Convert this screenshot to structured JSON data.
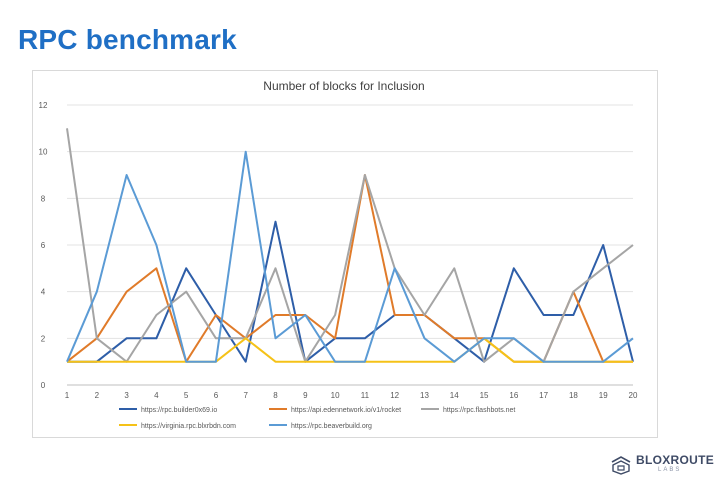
{
  "slide": {
    "title": "RPC benchmark"
  },
  "brand": {
    "name": "BLOXROUTE",
    "sub": "LABS"
  },
  "chart_data": {
    "type": "line",
    "title": "Number of blocks for Inclusion",
    "xlabel": "",
    "ylabel": "",
    "x": [
      1,
      2,
      3,
      4,
      5,
      6,
      7,
      8,
      9,
      10,
      11,
      12,
      13,
      14,
      15,
      16,
      17,
      18,
      19,
      20
    ],
    "ylim": [
      0,
      12
    ],
    "yticks": [
      0,
      2,
      4,
      6,
      8,
      10,
      12
    ],
    "grid": true,
    "legend_position": "bottom",
    "series": [
      {
        "name": "https://rpc.builder0x69.io",
        "color": "#2e5ea8",
        "values": [
          1,
          1,
          2,
          2,
          5,
          3,
          1,
          7,
          1,
          2,
          2,
          3,
          3,
          2,
          1,
          5,
          3,
          3,
          6,
          1
        ]
      },
      {
        "name": "https://api.edennetwork.io/v1/rocket",
        "color": "#e07b2a",
        "values": [
          1,
          2,
          4,
          5,
          1,
          3,
          2,
          3,
          3,
          2,
          9,
          3,
          3,
          2,
          2,
          1,
          1,
          4,
          1,
          1
        ]
      },
      {
        "name": "https://rpc.flashbots.net",
        "color": "#a5a5a5",
        "values": [
          11,
          2,
          1,
          3,
          4,
          2,
          2,
          5,
          1,
          3,
          9,
          5,
          3,
          5,
          1,
          2,
          1,
          4,
          5,
          6
        ]
      },
      {
        "name": "https://virginia.rpc.blxrbdn.com",
        "color": "#f5c218",
        "values": [
          1,
          1,
          1,
          1,
          1,
          1,
          2,
          1,
          1,
          1,
          1,
          1,
          1,
          1,
          2,
          1,
          1,
          1,
          1,
          1
        ]
      },
      {
        "name": "https://rpc.beaverbuild.org",
        "color": "#5b9bd5",
        "values": [
          1,
          4,
          9,
          6,
          1,
          1,
          10,
          2,
          3,
          1,
          1,
          5,
          2,
          1,
          2,
          2,
          1,
          1,
          1,
          2
        ]
      }
    ]
  }
}
